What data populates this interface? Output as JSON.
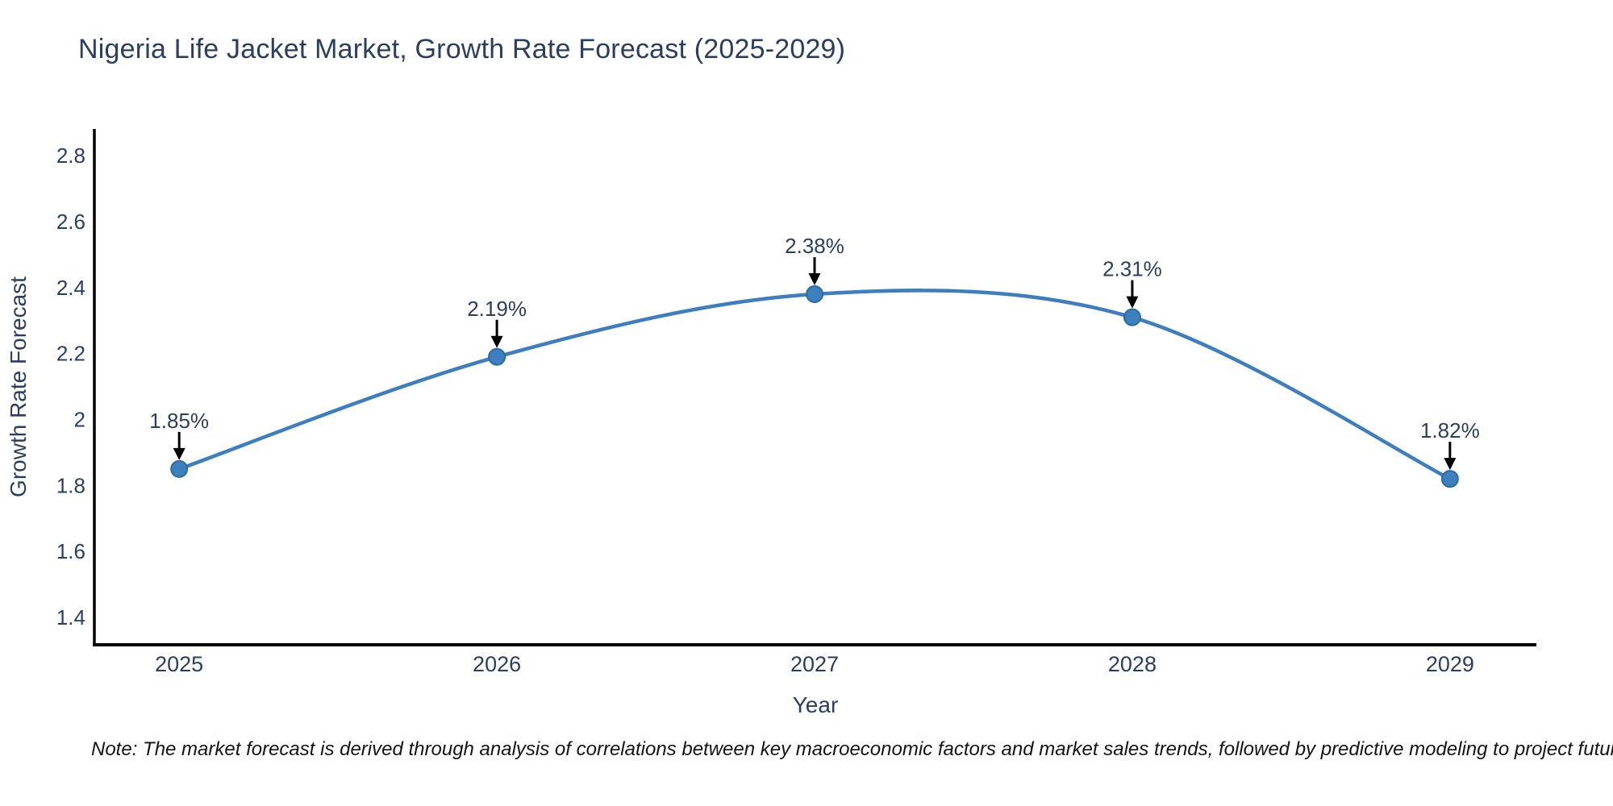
{
  "note": {
    "text": "Note: The market forecast is derived through analysis of correlations between key macroeconomic factors and market sales trends, followed by predictive modeling to project future sales"
  },
  "chart_data": {
    "type": "line",
    "title": "Nigeria Life Jacket Market, Growth Rate Forecast (2025-2029)",
    "xlabel": "Year",
    "ylabel": "Growth Rate Forecast",
    "line_shape": "spline",
    "grid": false,
    "legend": false,
    "x": [
      2025,
      2026,
      2027,
      2028,
      2029
    ],
    "values": [
      1.85,
      2.19,
      2.38,
      2.31,
      1.82
    ],
    "point_labels": [
      "1.85%",
      "2.19%",
      "2.38%",
      "2.31%",
      "1.82%"
    ],
    "xticks": [
      "2025",
      "2026",
      "2027",
      "2028",
      "2029"
    ],
    "yticks": [
      1.4,
      1.6,
      1.8,
      2.0,
      2.2,
      2.4,
      2.6,
      2.8
    ],
    "ytick_labels": [
      "1.4",
      "1.6",
      "1.8",
      "2",
      "2.2",
      "2.4",
      "2.6",
      "2.8"
    ],
    "xlim": [
      2024.733,
      2029.272
    ],
    "ylim": [
      1.317,
      2.881
    ],
    "line_color": "#3c7ebf",
    "marker_color": "#3d80bf",
    "marker_edge_color": "#2e6a9e",
    "arrow_color": "#000000",
    "axis_color": "#000000",
    "text_color": "#2a3f5f"
  }
}
